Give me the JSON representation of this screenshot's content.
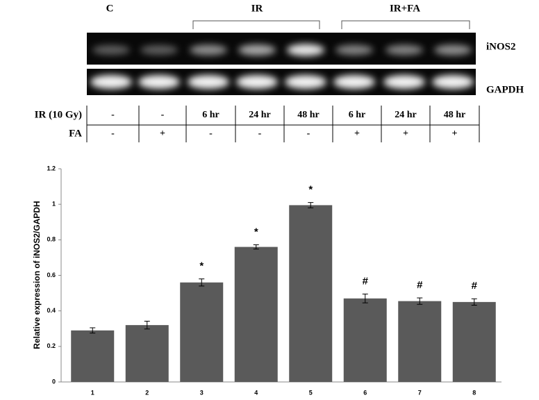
{
  "gel": {
    "group_labels": [
      "C",
      "IR",
      "IR+FA"
    ],
    "band_labels": [
      "iNOS2",
      "GAPDH"
    ]
  },
  "table": {
    "rows": [
      {
        "label": "IR (10 Gy)",
        "cells": [
          "-",
          "-",
          "6 hr",
          "24 hr",
          "48 hr",
          "6 hr",
          "24 hr",
          "48 hr"
        ]
      },
      {
        "label": "FA",
        "cells": [
          "-",
          "+",
          "-",
          "-",
          "-",
          "+",
          "+",
          "+"
        ]
      }
    ]
  },
  "chart_data": {
    "type": "bar",
    "y_label": "Relative expression of iNOS2/GAPDH",
    "categories": [
      "1",
      "2",
      "3",
      "4",
      "5",
      "6",
      "7",
      "8"
    ],
    "values": [
      0.29,
      0.32,
      0.56,
      0.76,
      0.995,
      0.47,
      0.455,
      0.45
    ],
    "errors": [
      0.015,
      0.022,
      0.02,
      0.012,
      0.015,
      0.025,
      0.018,
      0.018
    ],
    "annotations": [
      null,
      null,
      "*",
      "*",
      "*",
      "#",
      "#",
      "#"
    ],
    "color": "#5a5a5a",
    "ylim": [
      0,
      1.2
    ],
    "yticks": [
      0,
      0.2,
      0.4,
      0.6,
      0.8,
      1,
      1.2
    ]
  }
}
